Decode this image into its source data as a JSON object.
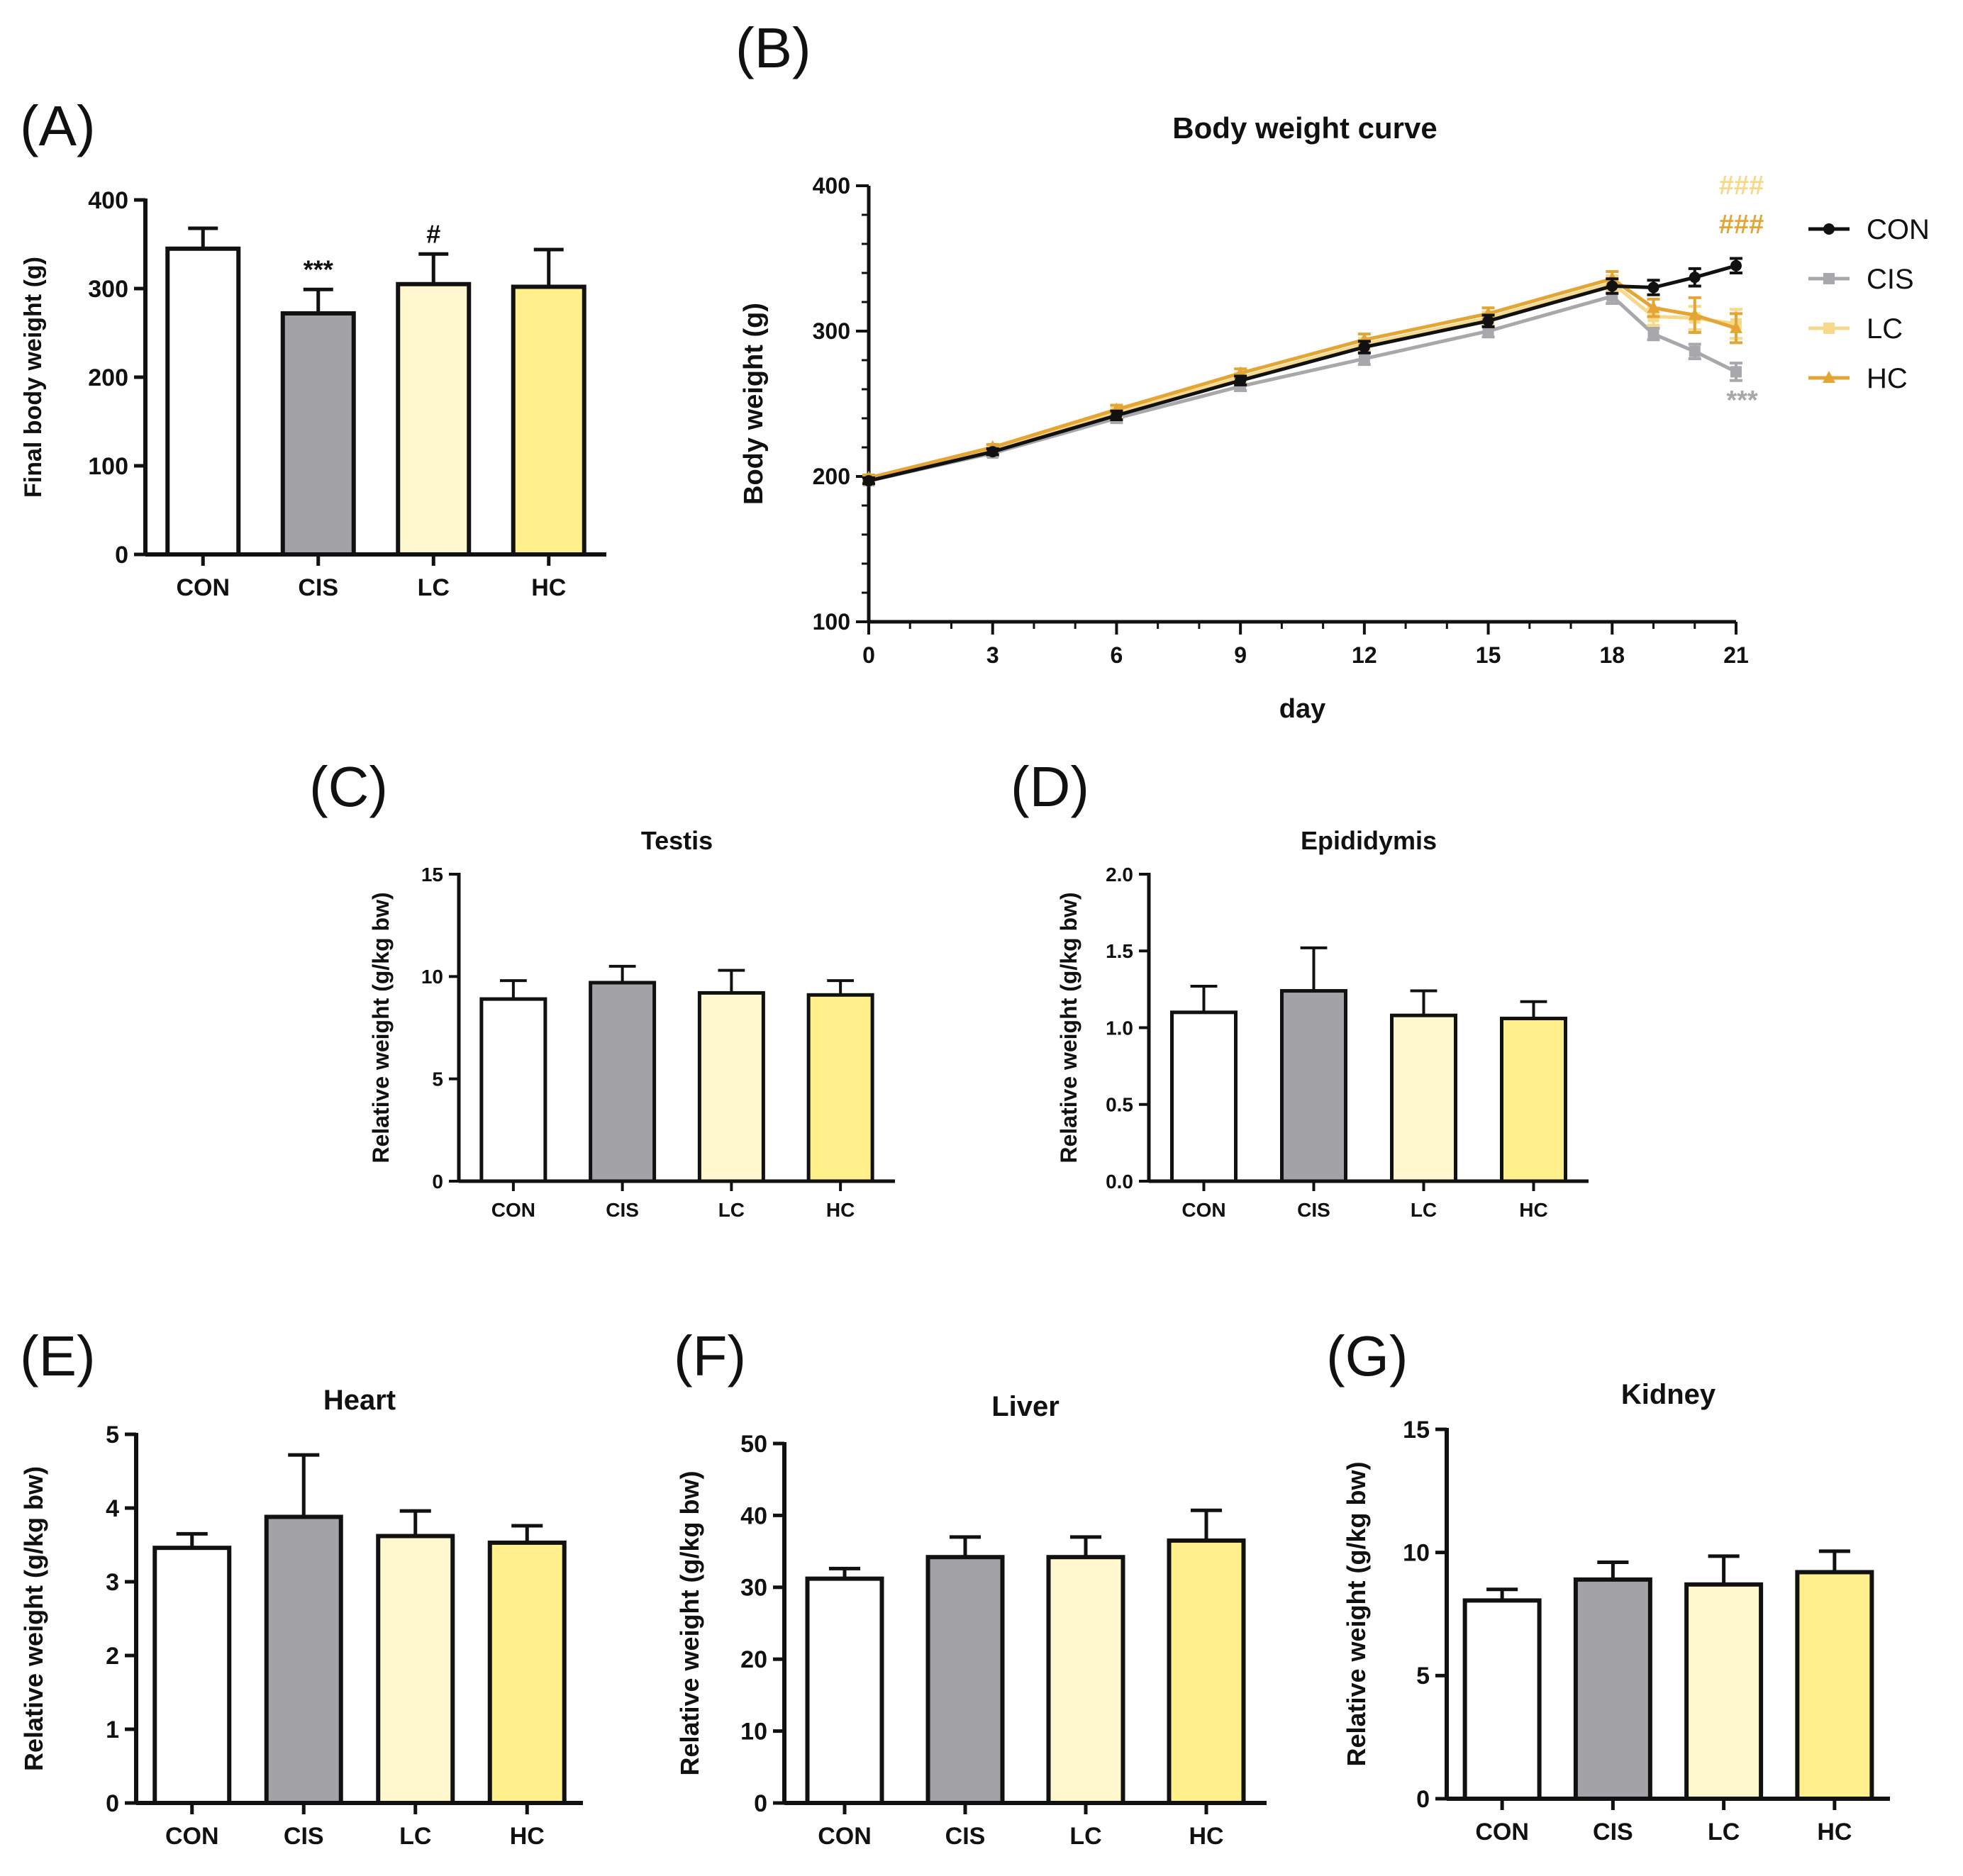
{
  "colors": {
    "CON": "#ffffff",
    "CIS": "#a3a2a7",
    "LC": "#fff8cf",
    "HC": "#fff08c",
    "line_CON": "#111111",
    "line_CIS": "#a8a8ac",
    "line_LC": "#f6d98a",
    "line_HC": "#e4a534"
  },
  "chart_data": [
    {
      "id": "A",
      "panel_label": "(A)",
      "type": "bar",
      "title": "",
      "ylabel": "Final body weight (g)",
      "xlabel": "",
      "ylim": [
        0,
        400
      ],
      "yticks": [
        0,
        100,
        200,
        300,
        400
      ],
      "categories": [
        "CON",
        "CIS",
        "LC",
        "HC"
      ],
      "values": [
        345,
        272,
        305,
        302
      ],
      "errors": [
        23,
        27,
        34,
        42
      ],
      "annotations": [
        "",
        "***",
        "#",
        ""
      ]
    },
    {
      "id": "B",
      "panel_label": "(B)",
      "type": "line",
      "title": "Body weight curve",
      "xlabel": "day",
      "ylabel": "Body weight (g)",
      "xlim": [
        0,
        21
      ],
      "ylim": [
        100,
        400
      ],
      "xticks": [
        0,
        3,
        6,
        9,
        12,
        15,
        18,
        21
      ],
      "yticks": [
        100,
        200,
        300,
        400
      ],
      "x": [
        0,
        3,
        6,
        9,
        12,
        15,
        18,
        19,
        20,
        21
      ],
      "series": [
        {
          "name": "CON",
          "marker": "circle",
          "values": [
            197,
            217,
            242,
            266,
            289,
            307,
            331,
            330,
            337,
            345
          ],
          "errors": [
            2,
            2,
            3,
            3,
            4,
            4,
            5,
            5,
            6,
            5
          ]
        },
        {
          "name": "CIS",
          "marker": "square",
          "values": [
            197,
            216,
            240,
            262,
            281,
            300,
            324,
            298,
            286,
            272
          ],
          "errors": [
            2,
            2,
            3,
            3,
            4,
            4,
            5,
            4,
            5,
            6
          ]
        },
        {
          "name": "LC",
          "marker": "square",
          "values": [
            198,
            218,
            244,
            268,
            291,
            309,
            333,
            310,
            309,
            305
          ],
          "errors": [
            2,
            2,
            3,
            3,
            4,
            4,
            5,
            6,
            8,
            10
          ]
        },
        {
          "name": "HC",
          "marker": "triangle",
          "values": [
            199,
            220,
            246,
            271,
            294,
            312,
            336,
            316,
            311,
            302
          ],
          "errors": [
            2,
            2,
            3,
            3,
            4,
            4,
            5,
            6,
            12,
            10
          ]
        }
      ],
      "legend_position": "right",
      "annotations": [
        {
          "text": "###",
          "series": "LC"
        },
        {
          "text": "###",
          "series": "HC"
        },
        {
          "text": "***",
          "series": "CIS"
        }
      ]
    },
    {
      "id": "C",
      "panel_label": "(C)",
      "type": "bar",
      "title": "Testis",
      "ylabel": "Relative weight (g/kg bw)",
      "xlabel": "",
      "ylim": [
        0,
        15
      ],
      "yticks": [
        0,
        5,
        10,
        15
      ],
      "categories": [
        "CON",
        "CIS",
        "LC",
        "HC"
      ],
      "values": [
        8.9,
        9.7,
        9.2,
        9.1
      ],
      "errors": [
        0.9,
        0.8,
        1.1,
        0.7
      ]
    },
    {
      "id": "D",
      "panel_label": "(D)",
      "type": "bar",
      "title": "Epididymis",
      "ylabel": "Relative  weight (g/kg bw)",
      "xlabel": "",
      "ylim": [
        0,
        2.0
      ],
      "yticks": [
        0.0,
        0.5,
        1.0,
        1.5,
        2.0
      ],
      "ytick_labels": [
        "0.0",
        "0.5",
        "1.0",
        "1.5",
        "2.0"
      ],
      "categories": [
        "CON",
        "CIS",
        "LC",
        "HC"
      ],
      "values": [
        1.1,
        1.24,
        1.08,
        1.06
      ],
      "errors": [
        0.17,
        0.28,
        0.16,
        0.11
      ]
    },
    {
      "id": "E",
      "panel_label": "(E)",
      "type": "bar",
      "title": "Heart",
      "ylabel": "Relative weight (g/kg bw)",
      "xlabel": "",
      "ylim": [
        0,
        5
      ],
      "yticks": [
        0,
        1,
        2,
        3,
        4,
        5
      ],
      "categories": [
        "CON",
        "CIS",
        "LC",
        "HC"
      ],
      "values": [
        3.46,
        3.88,
        3.62,
        3.53
      ],
      "errors": [
        0.19,
        0.84,
        0.34,
        0.23
      ]
    },
    {
      "id": "F",
      "panel_label": "(F)",
      "type": "bar",
      "title": "Liver",
      "ylabel": "Relative weight (g/kg bw)",
      "xlabel": "",
      "ylim": [
        0,
        50
      ],
      "yticks": [
        0,
        10,
        20,
        30,
        40,
        50
      ],
      "categories": [
        "CON",
        "CIS",
        "LC",
        "HC"
      ],
      "values": [
        31.2,
        34.2,
        34.2,
        36.5
      ],
      "errors": [
        1.4,
        2.8,
        2.8,
        4.2
      ]
    },
    {
      "id": "G",
      "panel_label": "(G)",
      "type": "bar",
      "title": "Kidney",
      "ylabel": "Relative weight (g/kg bw)",
      "xlabel": "",
      "ylim": [
        0,
        15
      ],
      "yticks": [
        0,
        5,
        10,
        15
      ],
      "categories": [
        "CON",
        "CIS",
        "LC",
        "HC"
      ],
      "values": [
        8.05,
        8.9,
        8.7,
        9.2
      ],
      "errors": [
        0.45,
        0.7,
        1.15,
        0.85
      ]
    }
  ]
}
